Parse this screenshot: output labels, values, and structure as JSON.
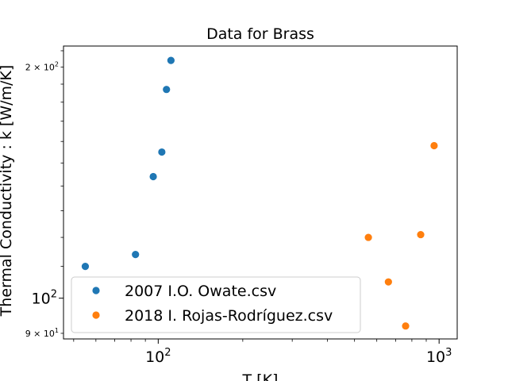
{
  "chart_data": {
    "type": "scatter",
    "title": "Data for Brass",
    "xlabel": "T [K]",
    "ylabel": "Thermal Conductivity : k [W/m/K]",
    "x_scale": "log",
    "y_scale": "log",
    "xlim": [
      46,
      1160
    ],
    "ylim": [
      88.5,
      213
    ],
    "x_major_ticks": [
      {
        "value": 100,
        "base": "10",
        "exp": "2"
      },
      {
        "value": 1000,
        "base": "10",
        "exp": "3"
      }
    ],
    "y_major_ticks": [
      {
        "value": 100,
        "base": "10",
        "exp": "2"
      }
    ],
    "y_minor_labeled_ticks": [
      {
        "value": 90,
        "mant": "9",
        "base": "10",
        "exp": "1"
      },
      {
        "value": 200,
        "mant": "2",
        "base": "10",
        "exp": "2"
      }
    ],
    "legend_position": "lower-left",
    "grid": false,
    "series": [
      {
        "name": "2007 I.O. Owate.csv",
        "color": "#1f77b4",
        "points": [
          {
            "x": 55,
            "y": 110
          },
          {
            "x": 83,
            "y": 114
          },
          {
            "x": 96,
            "y": 144
          },
          {
            "x": 103,
            "y": 155
          },
          {
            "x": 107,
            "y": 187
          },
          {
            "x": 111,
            "y": 204
          }
        ]
      },
      {
        "name": "2018 I. Rojas-Rodríguez.csv",
        "color": "#ff7f0e",
        "points": [
          {
            "x": 560,
            "y": 120
          },
          {
            "x": 660,
            "y": 105
          },
          {
            "x": 760,
            "y": 92
          },
          {
            "x": 860,
            "y": 121
          },
          {
            "x": 960,
            "y": 158
          }
        ]
      }
    ]
  }
}
